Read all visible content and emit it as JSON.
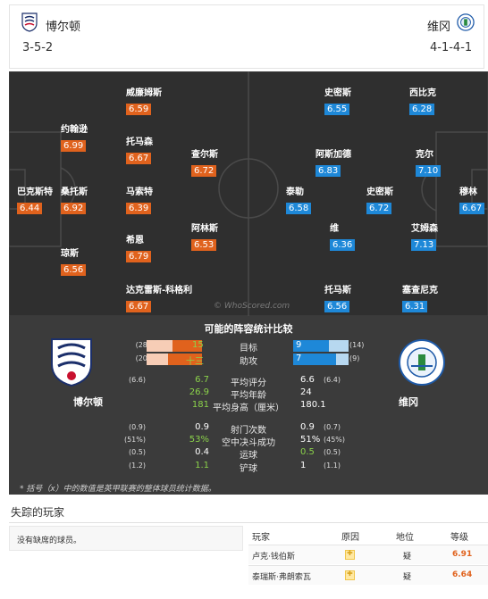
{
  "header": {
    "home_name": "博尔顿",
    "home_formation": "3-5-2",
    "away_name": "维冈",
    "away_formation": "4-1-4-1"
  },
  "pitch": {
    "watermark": "© WhoScored.com",
    "home_players": [
      {
        "name": "巴克斯特",
        "rating": "6.44"
      },
      {
        "name": "约翰逊",
        "rating": "6.99"
      },
      {
        "name": "桑托斯",
        "rating": "6.92"
      },
      {
        "name": "琼斯",
        "rating": "6.56"
      },
      {
        "name": "威廉姆斯",
        "rating": "6.59"
      },
      {
        "name": "托马森",
        "rating": "6.67"
      },
      {
        "name": "马索特",
        "rating": "6.39"
      },
      {
        "name": "希恩",
        "rating": "6.79"
      },
      {
        "name": "达克雷斯-科格利",
        "rating": "6.67"
      },
      {
        "name": "查尔斯",
        "rating": "6.72"
      },
      {
        "name": "阿林斯",
        "rating": "6.53"
      }
    ],
    "away_players": [
      {
        "name": "史密斯",
        "rating": "6.55"
      },
      {
        "name": "阿斯加德",
        "rating": "6.83"
      },
      {
        "name": "泰勒",
        "rating": "6.58"
      },
      {
        "name": "维",
        "rating": "6.36"
      },
      {
        "name": "托马斯",
        "rating": "6.56"
      },
      {
        "name": "史密斯",
        "rating": "6.72"
      },
      {
        "name": "西比克",
        "rating": "6.28"
      },
      {
        "name": "克尔",
        "rating": "7.10"
      },
      {
        "name": "艾姆森",
        "rating": "7.13"
      },
      {
        "name": "塞查尼克",
        "rating": "6.31"
      },
      {
        "name": "穆林",
        "rating": "6.67"
      }
    ]
  },
  "stats": {
    "title": "可能的阵容统计比较",
    "home_team": "博尔顿",
    "away_team": "维冈",
    "goals": {
      "label": "目标",
      "home": "15",
      "home_prev": "(28)",
      "away": "9",
      "away_prev": "(14)"
    },
    "assists": {
      "label": "助攻",
      "home": "十三",
      "home_prev": "(20)",
      "away": "7",
      "away_prev": "(9)"
    },
    "rows": [
      {
        "label": "平均评分",
        "home": "6.7",
        "home_prev": "(6.6)",
        "away": "6.6",
        "away_prev": "(6.4)",
        "home_win": true
      },
      {
        "label": "平均年龄",
        "home": "26.9",
        "home_prev": "",
        "away": "24",
        "away_prev": "",
        "home_win": true
      },
      {
        "label": "平均身高（厘米）",
        "home": "181",
        "home_prev": "",
        "away": "180.1",
        "away_prev": "",
        "home_win": true
      },
      {
        "label": "射门次数",
        "home": "0.9",
        "home_prev": "(0.9)",
        "away": "0.9",
        "away_prev": "(0.7)",
        "home_win": false
      },
      {
        "label": "空中决斗成功",
        "home": "53%",
        "home_prev": "(51%)",
        "away": "51%",
        "away_prev": "(45%)",
        "home_win": true
      },
      {
        "label": "运球",
        "home": "0.4",
        "home_prev": "(0.5)",
        "away": "0.5",
        "away_prev": "(0.5)",
        "home_win": false,
        "away_win": true
      },
      {
        "label": "铲球",
        "home": "1.1",
        "home_prev": "(1.2)",
        "away": "1",
        "away_prev": "(1.1)",
        "home_win": true
      }
    ],
    "footnote": "* 括号（x）中的数值是英甲联赛的整体球员统计数据。"
  },
  "missing": {
    "title": "失踪的玩家",
    "home_message": "没有缺席的球员。",
    "headers": {
      "player": "玩家",
      "reason": "原因",
      "status": "地位",
      "rating": "等级"
    },
    "rows": [
      {
        "player": "卢克·钱伯斯",
        "reason": "injury-icon",
        "status": "疑",
        "rating": "6.91"
      },
      {
        "player": "泰瑞斯·弗朗索瓦",
        "reason": "injury-icon",
        "status": "疑",
        "rating": "6.64"
      }
    ]
  },
  "colors": {
    "home_accent": "#e0621d",
    "away_accent": "#1e88d8",
    "win_green": "#8bd24a"
  }
}
